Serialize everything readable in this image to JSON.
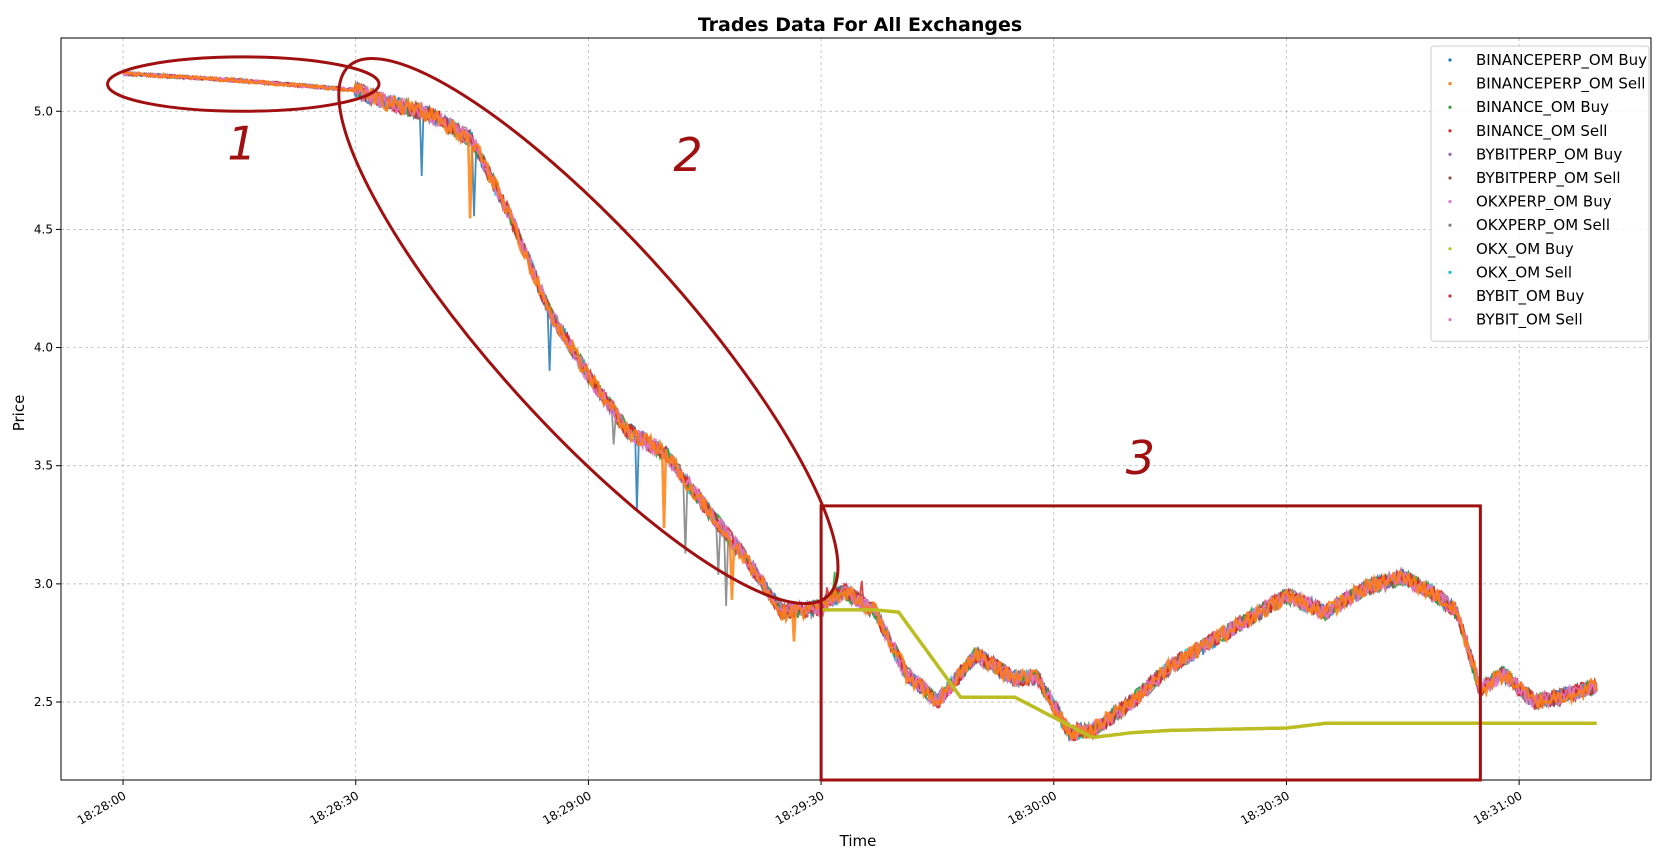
{
  "chart_data": {
    "type": "scatter",
    "title": "Trades Data For All Exchanges",
    "xlabel": "Time",
    "ylabel": "Price",
    "xlim": [
      "18:27:52",
      "18:31:17"
    ],
    "ylim": [
      2.17,
      5.31
    ],
    "grid": true,
    "legend_position": "top-right",
    "x_ticks": [
      "18:28:00",
      "18:28:30",
      "18:29:00",
      "18:29:30",
      "18:30:00",
      "18:30:30",
      "18:31:00"
    ],
    "y_ticks": [
      2.5,
      3.0,
      3.5,
      4.0,
      4.5,
      5.0
    ],
    "series": [
      {
        "name": "BINANCEPERP_OM Buy",
        "color": "#1f77b4"
      },
      {
        "name": "BINANCEPERP_OM Sell",
        "color": "#ff7f0e"
      },
      {
        "name": "BINANCE_OM Buy",
        "color": "#2ca02c"
      },
      {
        "name": "BINANCE_OM Sell",
        "color": "#d62728"
      },
      {
        "name": "BYBITPERP_OM Buy",
        "color": "#9467bd"
      },
      {
        "name": "BYBITPERP_OM Sell",
        "color": "#8c564b"
      },
      {
        "name": "OKXPERP_OM Buy",
        "color": "#e377c2"
      },
      {
        "name": "OKXPERP_OM Sell",
        "color": "#7f7f7f"
      },
      {
        "name": "OKX_OM Buy",
        "color": "#bcbd22"
      },
      {
        "name": "OKX_OM Sell",
        "color": "#17becf"
      },
      {
        "name": "BYBIT_OM Buy",
        "color": "#d62728"
      },
      {
        "name": "BYBIT_OM Sell",
        "color": "#e377c2"
      }
    ],
    "price_path": {
      "x": [
        "18:28:00",
        "18:28:15",
        "18:28:30",
        "18:28:33",
        "18:28:40",
        "18:28:45",
        "18:28:50",
        "18:28:55",
        "18:29:00",
        "18:29:05",
        "18:29:10",
        "18:29:15",
        "18:29:20",
        "18:29:25",
        "18:29:30",
        "18:29:33",
        "18:29:37",
        "18:29:41",
        "18:29:45",
        "18:29:50",
        "18:29:55",
        "18:29:58",
        "18:30:02",
        "18:30:05",
        "18:30:10",
        "18:30:15",
        "18:30:20",
        "18:30:25",
        "18:30:30",
        "18:30:35",
        "18:30:40",
        "18:30:45",
        "18:30:49",
        "18:30:52",
        "18:30:55",
        "18:30:58",
        "18:31:02",
        "18:31:05",
        "18:31:10"
      ],
      "y": [
        5.16,
        5.13,
        5.09,
        5.05,
        4.98,
        4.88,
        4.55,
        4.15,
        3.88,
        3.65,
        3.55,
        3.33,
        3.12,
        2.88,
        2.9,
        2.97,
        2.88,
        2.62,
        2.5,
        2.7,
        2.6,
        2.6,
        2.37,
        2.38,
        2.5,
        2.65,
        2.75,
        2.85,
        2.95,
        2.88,
        2.98,
        3.03,
        2.96,
        2.88,
        2.55,
        2.62,
        2.5,
        2.52,
        2.57
      ]
    },
    "okx_spot_path": {
      "x": [
        "18:29:30",
        "18:29:37",
        "18:29:40",
        "18:29:48",
        "18:29:55",
        "18:30:05",
        "18:30:10",
        "18:30:15",
        "18:30:30",
        "18:30:35",
        "18:31:10"
      ],
      "y": [
        2.89,
        2.89,
        2.88,
        2.52,
        2.52,
        2.35,
        2.37,
        2.38,
        2.39,
        2.41,
        2.41
      ]
    },
    "annotations": [
      {
        "label": "1",
        "shape": "ellipse",
        "x_range": [
          "18:27:58",
          "18:28:33"
        ],
        "y_range": [
          5.0,
          5.23
        ]
      },
      {
        "label": "2",
        "shape": "ellipse",
        "x_range": [
          "18:28:30",
          "18:29:30"
        ],
        "y_range": [
          2.98,
          5.16
        ]
      },
      {
        "label": "3",
        "shape": "rectangle",
        "x_range": [
          "18:29:30",
          "18:30:55"
        ],
        "y_range": [
          2.17,
          3.33
        ]
      }
    ]
  }
}
